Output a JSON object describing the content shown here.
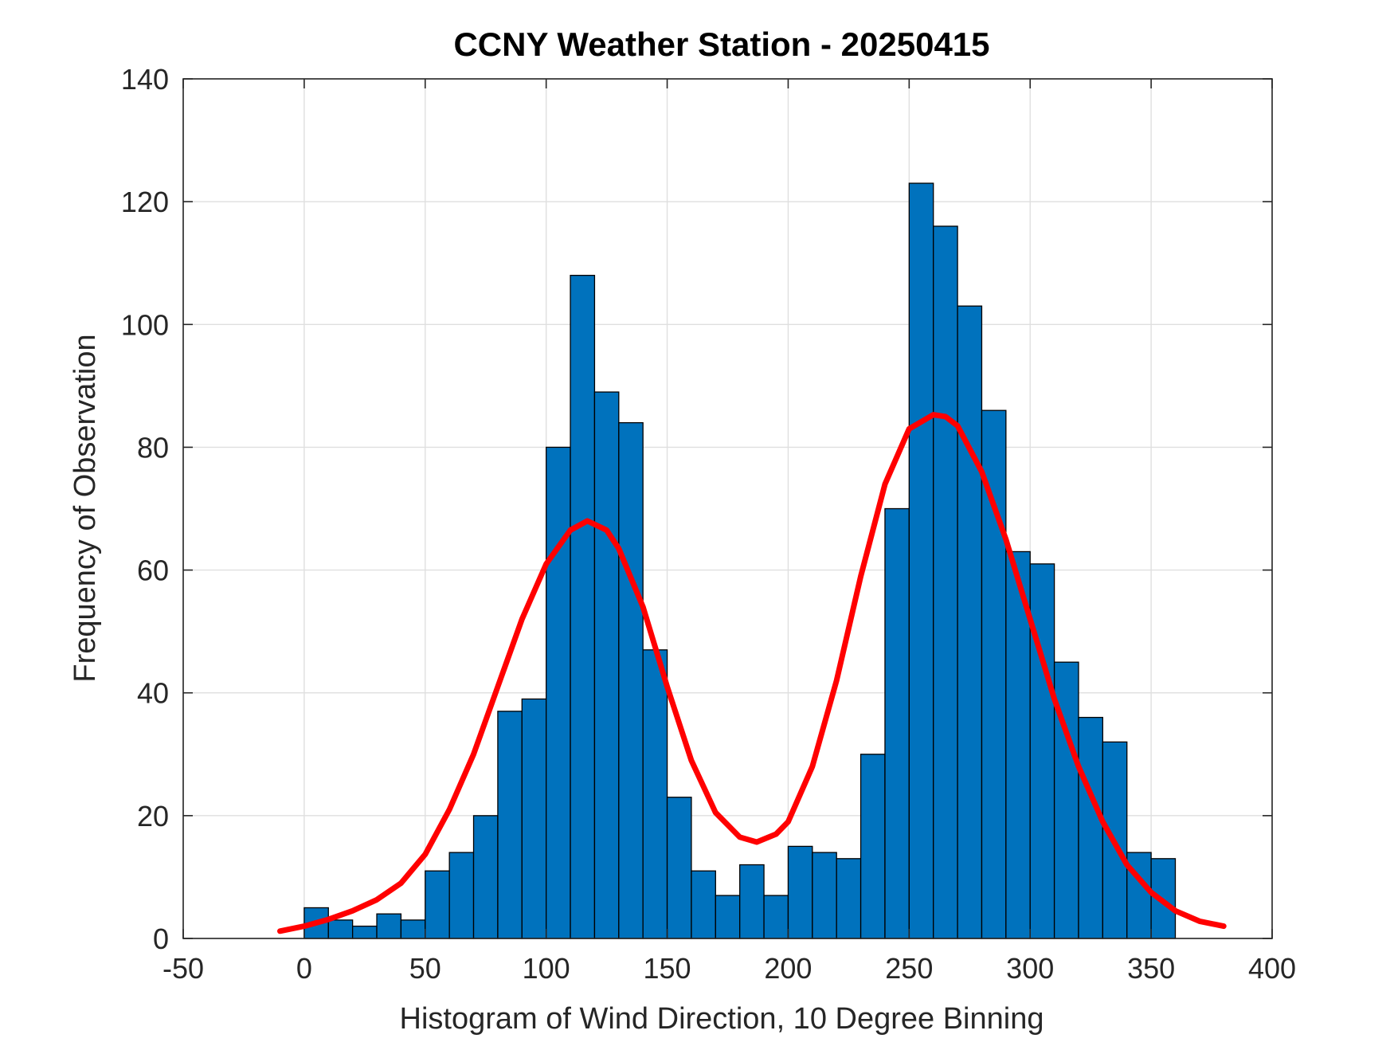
{
  "chart_data": {
    "type": "bar",
    "title": "CCNY Weather Station - 20250415",
    "xlabel": "Histogram of Wind Direction, 10 Degree Binning",
    "ylabel": "Frequency of Observation",
    "xlim": [
      -50,
      400
    ],
    "ylim": [
      0,
      140
    ],
    "xticks": [
      -50,
      0,
      50,
      100,
      150,
      200,
      250,
      300,
      350,
      400
    ],
    "yticks": [
      0,
      20,
      40,
      60,
      80,
      100,
      120,
      140
    ],
    "grid": true,
    "bin_width": 10,
    "bins": [
      {
        "left": 0,
        "count": 5
      },
      {
        "left": 10,
        "count": 3
      },
      {
        "left": 20,
        "count": 2
      },
      {
        "left": 30,
        "count": 4
      },
      {
        "left": 40,
        "count": 3
      },
      {
        "left": 50,
        "count": 11
      },
      {
        "left": 60,
        "count": 14
      },
      {
        "left": 70,
        "count": 20
      },
      {
        "left": 80,
        "count": 37
      },
      {
        "left": 90,
        "count": 39
      },
      {
        "left": 100,
        "count": 80
      },
      {
        "left": 110,
        "count": 108
      },
      {
        "left": 120,
        "count": 89
      },
      {
        "left": 130,
        "count": 84
      },
      {
        "left": 140,
        "count": 47
      },
      {
        "left": 150,
        "count": 23
      },
      {
        "left": 160,
        "count": 11
      },
      {
        "left": 170,
        "count": 7
      },
      {
        "left": 180,
        "count": 12
      },
      {
        "left": 190,
        "count": 7
      },
      {
        "left": 200,
        "count": 15
      },
      {
        "left": 210,
        "count": 14
      },
      {
        "left": 220,
        "count": 13
      },
      {
        "left": 230,
        "count": 30
      },
      {
        "left": 240,
        "count": 70
      },
      {
        "left": 250,
        "count": 123
      },
      {
        "left": 260,
        "count": 116
      },
      {
        "left": 270,
        "count": 103
      },
      {
        "left": 280,
        "count": 86
      },
      {
        "left": 290,
        "count": 63
      },
      {
        "left": 300,
        "count": 61
      },
      {
        "left": 310,
        "count": 45
      },
      {
        "left": 320,
        "count": 36
      },
      {
        "left": 330,
        "count": 32
      },
      {
        "left": 340,
        "count": 14
      },
      {
        "left": 350,
        "count": 13
      }
    ],
    "fit_curve": {
      "type": "line",
      "x": [
        -10,
        0,
        10,
        20,
        30,
        40,
        50,
        60,
        70,
        80,
        90,
        100,
        110,
        117,
        125,
        130,
        140,
        150,
        160,
        170,
        180,
        187,
        195,
        200,
        210,
        220,
        230,
        240,
        250,
        260,
        265,
        270,
        280,
        290,
        300,
        310,
        320,
        330,
        340,
        350,
        360,
        370,
        380
      ],
      "y": [
        1.2,
        2.0,
        3.1,
        4.5,
        6.3,
        9.0,
        13.7,
        21.0,
        30.0,
        41.0,
        52.0,
        61.0,
        66.5,
        68.0,
        66.5,
        63.5,
        54.0,
        41.0,
        29.0,
        20.5,
        16.5,
        15.7,
        17.0,
        19.0,
        28.0,
        42.0,
        59.0,
        74.0,
        83.0,
        85.3,
        85.0,
        83.5,
        76.0,
        65.0,
        52.0,
        39.0,
        28.0,
        19.0,
        12.0,
        7.5,
        4.5,
        2.8,
        2.0
      ]
    },
    "colors": {
      "bar_fill": "#0072BD",
      "bar_edge": "#000000",
      "curve": "#FF0000",
      "grid": "#DFDFDF",
      "axis": "#262626"
    }
  }
}
